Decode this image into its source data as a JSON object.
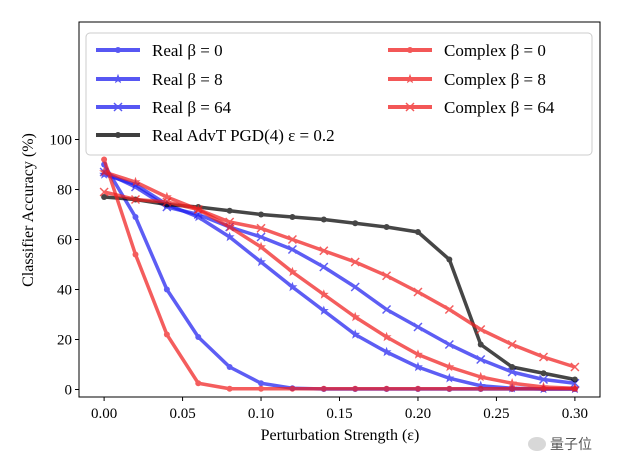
{
  "chart_data": {
    "type": "line",
    "title": "",
    "xlabel": "Perturbation Strength (ε)",
    "ylabel": "Classifier Accuracy (%)",
    "xlim": [
      -0.016,
      0.316
    ],
    "ylim": [
      -3.0,
      147.0
    ],
    "xticks": [
      0.0,
      0.05,
      0.1,
      0.15,
      0.2,
      0.25,
      0.3
    ],
    "xtick_labels": [
      "0.00",
      "0.05",
      "0.10",
      "0.15",
      "0.20",
      "0.25",
      "0.30"
    ],
    "yticks": [
      0,
      20,
      40,
      60,
      80,
      100
    ],
    "ytick_labels": [
      "0",
      "20",
      "40",
      "60",
      "80",
      "100"
    ],
    "grid": false,
    "legend_location": "top",
    "x": [
      0.0,
      0.02,
      0.04,
      0.06,
      0.08,
      0.1,
      0.12,
      0.14,
      0.16,
      0.18,
      0.2,
      0.22,
      0.24,
      0.26,
      0.28,
      0.3
    ],
    "series": [
      {
        "name": "Real β = 0",
        "color": "#2020f0",
        "marker": "dot",
        "values": [
          90,
          69,
          40,
          21,
          9,
          2.5,
          0.5,
          0.2,
          0.2,
          0.2,
          0.2,
          0.2,
          0.2,
          0.2,
          0.2,
          0.2
        ]
      },
      {
        "name": "Real β = 8",
        "color": "#2020f0",
        "marker": "star",
        "values": [
          86,
          82,
          74,
          69,
          61,
          51,
          41,
          31.5,
          22,
          15,
          9,
          4.5,
          1.5,
          0.5,
          0.2,
          0.2
        ]
      },
      {
        "name": "Real β = 64",
        "color": "#2020f0",
        "marker": "x",
        "values": [
          87,
          81,
          73,
          70,
          65,
          61,
          56,
          49,
          41,
          32,
          25,
          18,
          12,
          7,
          4,
          2.5
        ]
      },
      {
        "name": "Real AdvT PGD(4) ε = 0.2",
        "color": "#000000",
        "marker": "dot",
        "values": [
          77,
          76,
          74,
          73,
          71.5,
          70,
          69,
          68,
          66.5,
          65,
          63,
          52,
          18,
          9,
          6.5,
          4
        ]
      },
      {
        "name": "Complex β = 0",
        "color": "#f02020",
        "marker": "dot",
        "values": [
          92,
          54,
          22,
          2.5,
          0.3,
          0.3,
          0.3,
          0.3,
          0.3,
          0.3,
          0.3,
          0.3,
          0.3,
          0.3,
          0.3,
          0.3
        ]
      },
      {
        "name": "Complex β = 8",
        "color": "#f02020",
        "marker": "star",
        "values": [
          87,
          83,
          77,
          72,
          65,
          57,
          47,
          38,
          29,
          21,
          14,
          9,
          5,
          2.5,
          1,
          0.5
        ]
      },
      {
        "name": "Complex β = 64",
        "color": "#f02020",
        "marker": "x",
        "values": [
          79,
          76,
          75,
          72,
          67,
          64.5,
          60,
          55.5,
          51,
          45.5,
          39,
          32,
          24,
          18,
          13,
          9
        ]
      }
    ]
  },
  "watermark": {
    "text": "量子位"
  }
}
